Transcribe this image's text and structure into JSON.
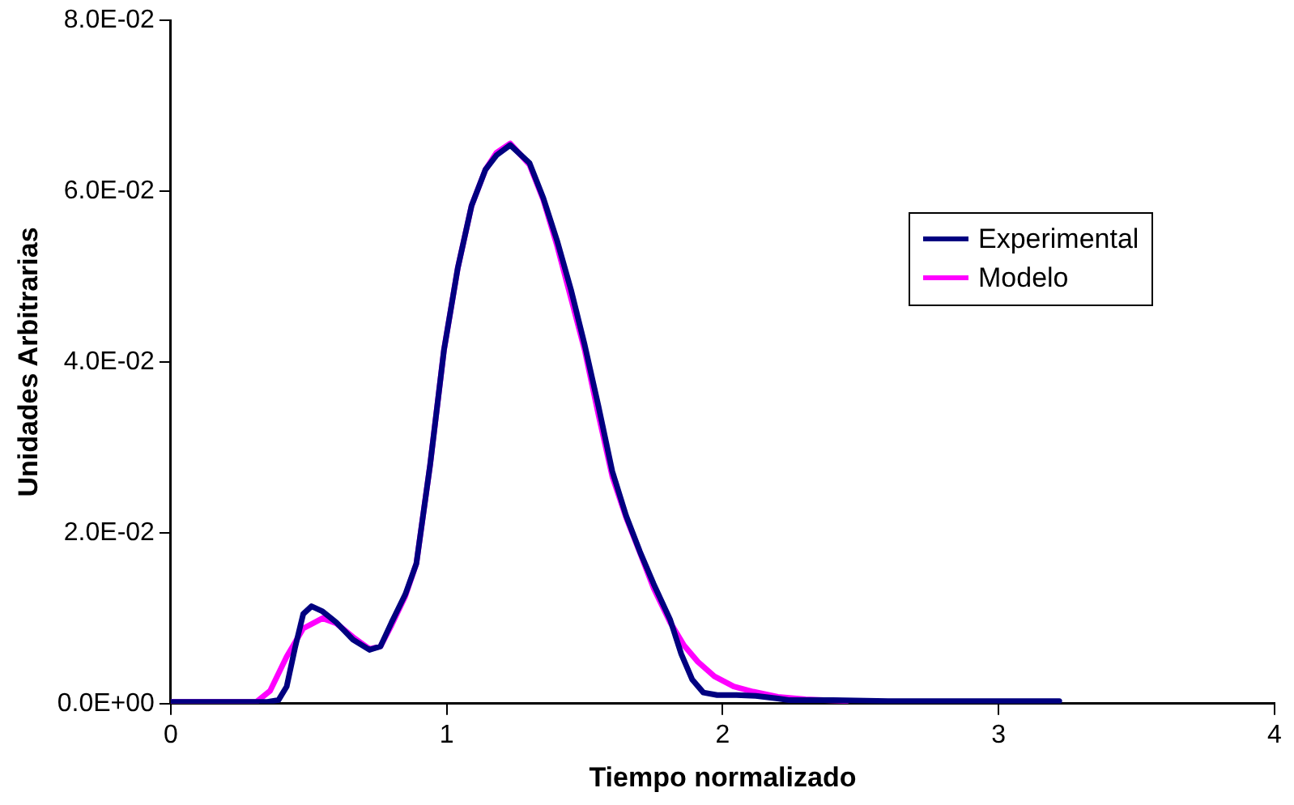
{
  "chart_data": {
    "type": "line",
    "xlabel": "Tiempo normalizado",
    "ylabel": "Unidades Arbitrarias",
    "xlim": [
      0,
      4
    ],
    "xticks": [
      0,
      1,
      2,
      3,
      4
    ],
    "ylim": [
      0,
      0.08
    ],
    "yticks": [
      {
        "value": 0,
        "label": "0.0E+00"
      },
      {
        "value": 0.02,
        "label": "2.0E-02"
      },
      {
        "value": 0.04,
        "label": "4.0E-02"
      },
      {
        "value": 0.06,
        "label": "6.0E-02"
      },
      {
        "value": 0.08,
        "label": "8.0E-02"
      }
    ],
    "grid": false,
    "legend": "right",
    "marker": "none",
    "line_style": "solid",
    "series": [
      {
        "name": "Experimental",
        "color": "#000080",
        "x": [
          0,
          0.2,
          0.35,
          0.39,
          0.42,
          0.45,
          0.48,
          0.51,
          0.55,
          0.6,
          0.66,
          0.72,
          0.76,
          0.8,
          0.85,
          0.89,
          0.94,
          0.99,
          1.04,
          1.09,
          1.14,
          1.18,
          1.23,
          1.3,
          1.35,
          1.4,
          1.45,
          1.5,
          1.55,
          1.6,
          1.65,
          1.7,
          1.75,
          1.81,
          1.85,
          1.89,
          1.93,
          1.98,
          2.05,
          2.12,
          2.2,
          2.24,
          2.4,
          2.6,
          2.8,
          3.0,
          3.22
        ],
        "values": [
          0.0002,
          0.0002,
          0.0002,
          0.0004,
          0.002,
          0.0065,
          0.0105,
          0.0114,
          0.0108,
          0.0095,
          0.0075,
          0.0063,
          0.0067,
          0.0095,
          0.0128,
          0.0164,
          0.028,
          0.0414,
          0.051,
          0.0583,
          0.0625,
          0.0642,
          0.0654,
          0.0633,
          0.0592,
          0.0542,
          0.0485,
          0.042,
          0.0348,
          0.0272,
          0.022,
          0.0178,
          0.014,
          0.0098,
          0.0058,
          0.0028,
          0.0013,
          0.001,
          0.001,
          0.0009,
          0.0006,
          0.0004,
          0.0004,
          0.0003,
          0.0003,
          0.0003,
          0.0003
        ]
      },
      {
        "name": "Modelo",
        "color": "#ff00ff",
        "x": [
          0,
          0.2,
          0.31,
          0.36,
          0.42,
          0.48,
          0.55,
          0.6,
          0.66,
          0.72,
          0.76,
          0.8,
          0.85,
          0.89,
          0.94,
          0.99,
          1.04,
          1.09,
          1.14,
          1.18,
          1.23,
          1.3,
          1.35,
          1.4,
          1.45,
          1.5,
          1.55,
          1.6,
          1.65,
          1.7,
          1.75,
          1.81,
          1.86,
          1.91,
          1.97,
          2.04,
          2.11,
          2.2,
          2.3,
          2.45
        ],
        "values": [
          0.0002,
          0.0002,
          0.0002,
          0.0015,
          0.0055,
          0.0088,
          0.01,
          0.0094,
          0.0078,
          0.0064,
          0.0067,
          0.0092,
          0.0126,
          0.0164,
          0.028,
          0.0414,
          0.051,
          0.0583,
          0.0625,
          0.0645,
          0.0656,
          0.0631,
          0.059,
          0.0536,
          0.0475,
          0.0414,
          0.0338,
          0.0266,
          0.0218,
          0.0177,
          0.0135,
          0.0095,
          0.0068,
          0.0049,
          0.0032,
          0.002,
          0.0014,
          0.0008,
          0.0005,
          0.0003
        ]
      }
    ]
  }
}
